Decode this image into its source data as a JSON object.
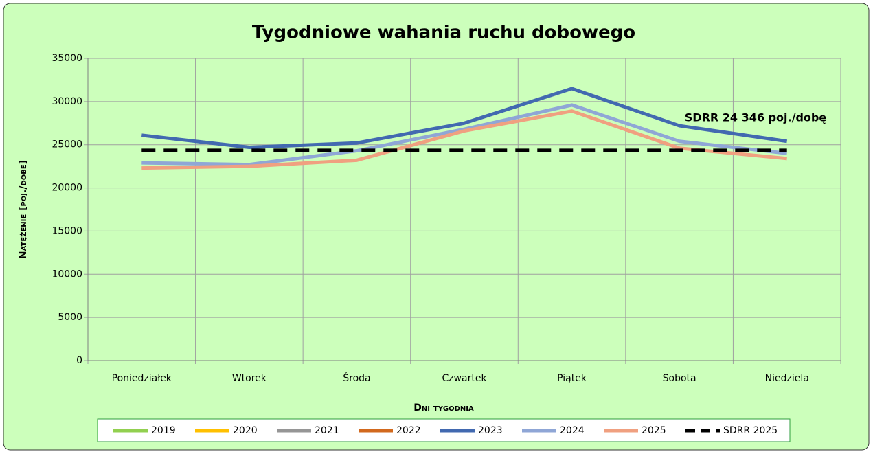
{
  "chart_data": {
    "type": "line",
    "title": "Tygodniowe wahania ruchu dobowego",
    "x_label": "Dni tygodnia",
    "y_label": "Natężenie [poj./dobę]",
    "annotation": "SDRR 24 346 poj./dobę",
    "categories": [
      "Poniedziałek",
      "Wtorek",
      "Środa",
      "Czwartek",
      "Piątek",
      "Sobota",
      "Niedziela"
    ],
    "ylim": [
      0,
      35000
    ],
    "yticks": [
      0,
      5000,
      10000,
      15000,
      20000,
      25000,
      30000,
      35000
    ],
    "grid": true,
    "legend": "bottom",
    "series": [
      {
        "name": "2019",
        "color": "#92d050",
        "values": [
          null,
          null,
          null,
          null,
          null,
          null,
          null
        ]
      },
      {
        "name": "2020",
        "color": "#ffc000",
        "values": [
          null,
          null,
          null,
          null,
          null,
          null,
          null
        ]
      },
      {
        "name": "2021",
        "color": "#969696",
        "values": [
          null,
          null,
          null,
          null,
          null,
          null,
          null
        ]
      },
      {
        "name": "2022",
        "color": "#d2691e",
        "values": [
          null,
          null,
          null,
          null,
          null,
          null,
          null
        ]
      },
      {
        "name": "2023",
        "color": "#4269b0",
        "values": [
          26100,
          24700,
          25200,
          27500,
          31500,
          27200,
          25400
        ]
      },
      {
        "name": "2024",
        "color": "#8fa6d6",
        "values": [
          22900,
          22700,
          24300,
          26800,
          29600,
          25400,
          24000
        ]
      },
      {
        "name": "2025",
        "color": "#f0a080",
        "values": [
          22300,
          22500,
          23200,
          26600,
          28900,
          24600,
          23400
        ]
      },
      {
        "name": "SDRR 2025",
        "color": "#000000",
        "dashed": true,
        "values": [
          24346,
          24346,
          24346,
          24346,
          24346,
          24346,
          24346
        ]
      }
    ]
  }
}
